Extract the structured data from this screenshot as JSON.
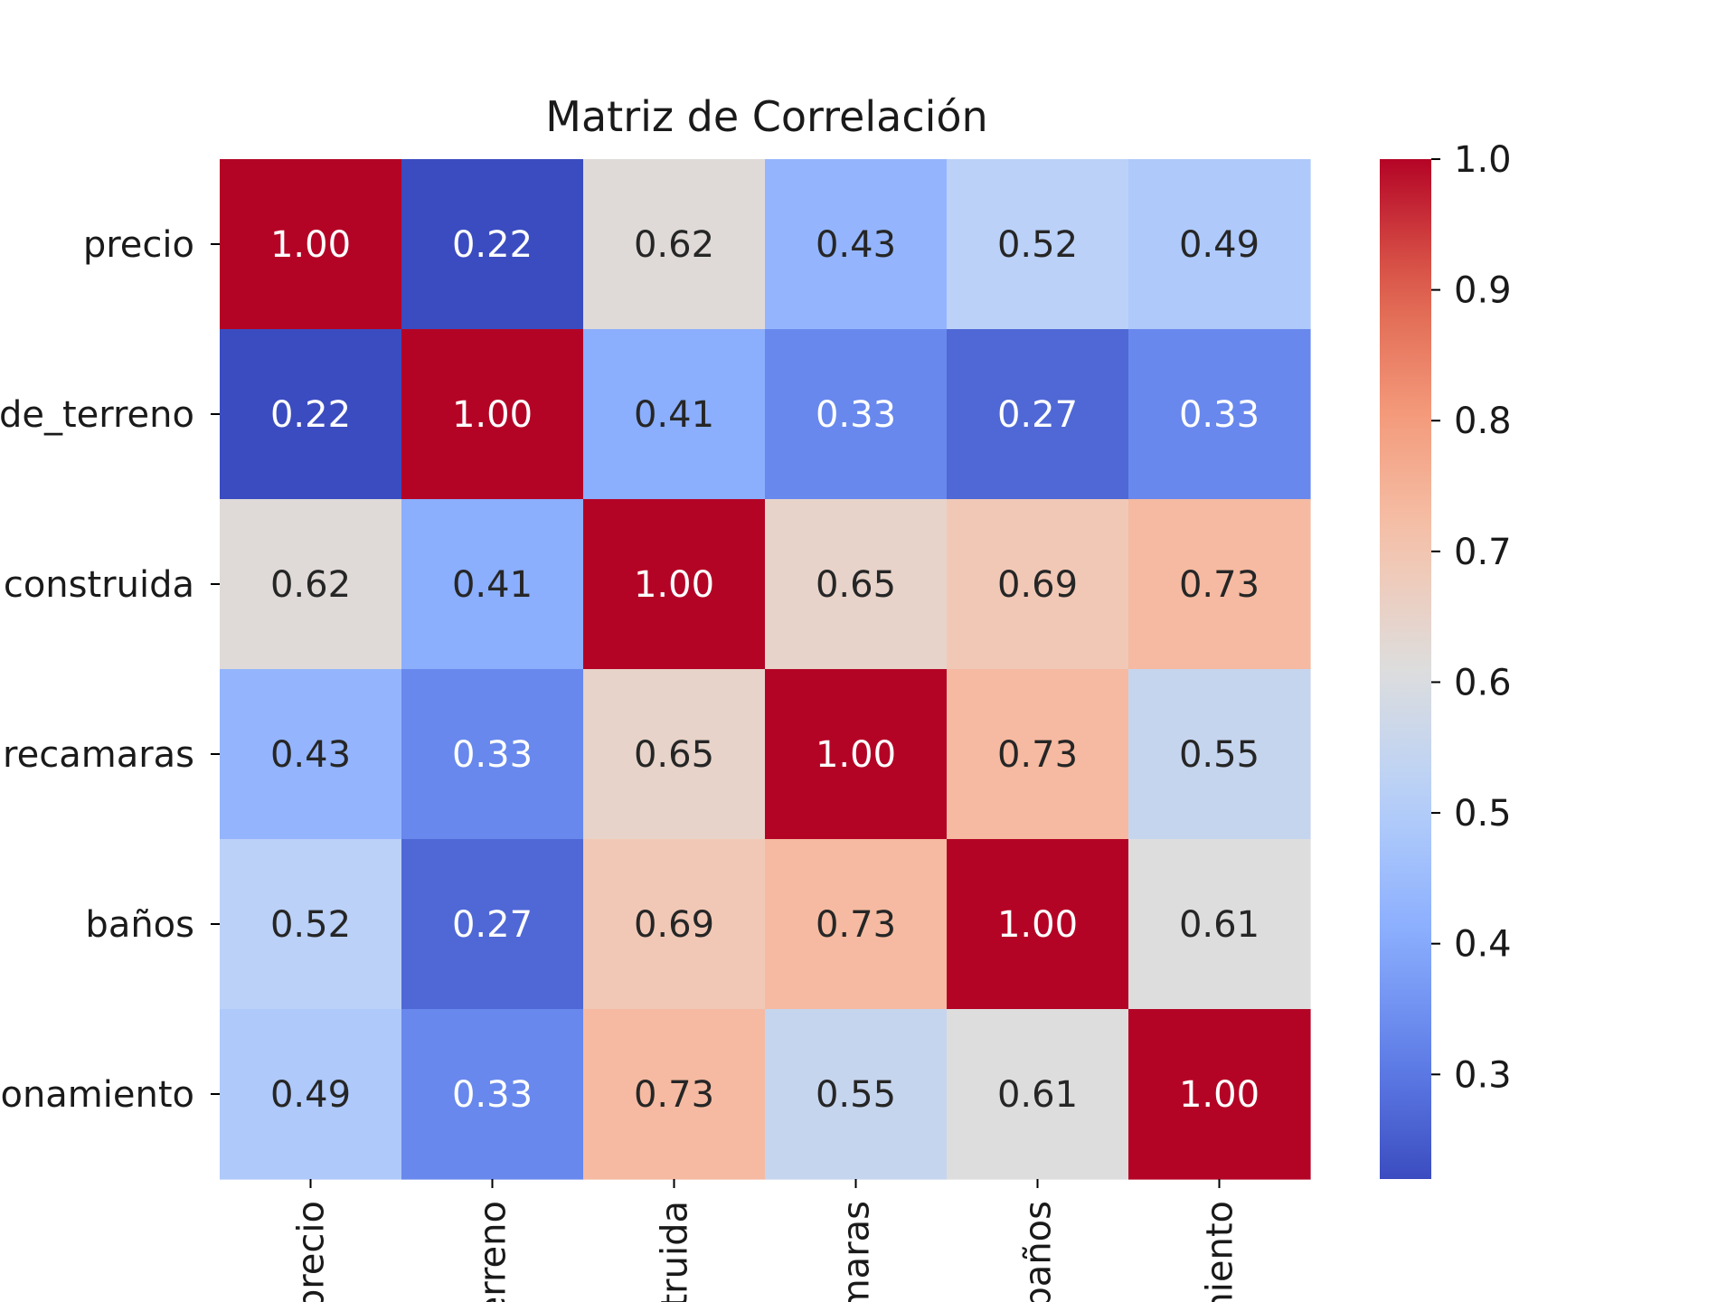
{
  "chart_data": {
    "type": "heatmap",
    "title": "Matriz de Correlación",
    "colormap": "coolwarm",
    "y_tick_labels": [
      "precio",
      "de_terreno",
      "construida",
      "recamaras",
      "baños",
      "onamiento"
    ],
    "x_tick_labels": [
      "precio",
      "erreno",
      "truida",
      "maras",
      "baños",
      "niento"
    ],
    "values": [
      [
        1.0,
        0.22,
        0.62,
        0.43,
        0.52,
        0.49
      ],
      [
        0.22,
        1.0,
        0.41,
        0.33,
        0.27,
        0.33
      ],
      [
        0.62,
        0.41,
        1.0,
        0.65,
        0.69,
        0.73
      ],
      [
        0.43,
        0.33,
        0.65,
        1.0,
        0.73,
        0.55
      ],
      [
        0.52,
        0.27,
        0.69,
        0.73,
        1.0,
        0.61
      ],
      [
        0.49,
        0.33,
        0.73,
        0.55,
        0.61,
        1.0
      ]
    ],
    "value_labels": [
      [
        "1.00",
        "0.22",
        "0.62",
        "0.43",
        "0.52",
        "0.49"
      ],
      [
        "0.22",
        "1.00",
        "0.41",
        "0.33",
        "0.27",
        "0.33"
      ],
      [
        "0.62",
        "0.41",
        "1.00",
        "0.65",
        "0.69",
        "0.73"
      ],
      [
        "0.43",
        "0.33",
        "0.65",
        "1.00",
        "0.73",
        "0.55"
      ],
      [
        "0.52",
        "0.27",
        "0.69",
        "0.73",
        "1.00",
        "0.61"
      ],
      [
        "0.49",
        "0.33",
        "0.73",
        "0.55",
        "0.61",
        "1.00"
      ]
    ],
    "colorbar": {
      "range": [
        0.22,
        1.0
      ],
      "ticks": [
        0.3,
        0.4,
        0.5,
        0.6,
        0.7,
        0.8,
        0.9,
        1.0
      ],
      "tick_labels": [
        "0.3",
        "0.4",
        "0.5",
        "0.6",
        "0.7",
        "0.8",
        "0.9",
        "1.0"
      ]
    }
  }
}
